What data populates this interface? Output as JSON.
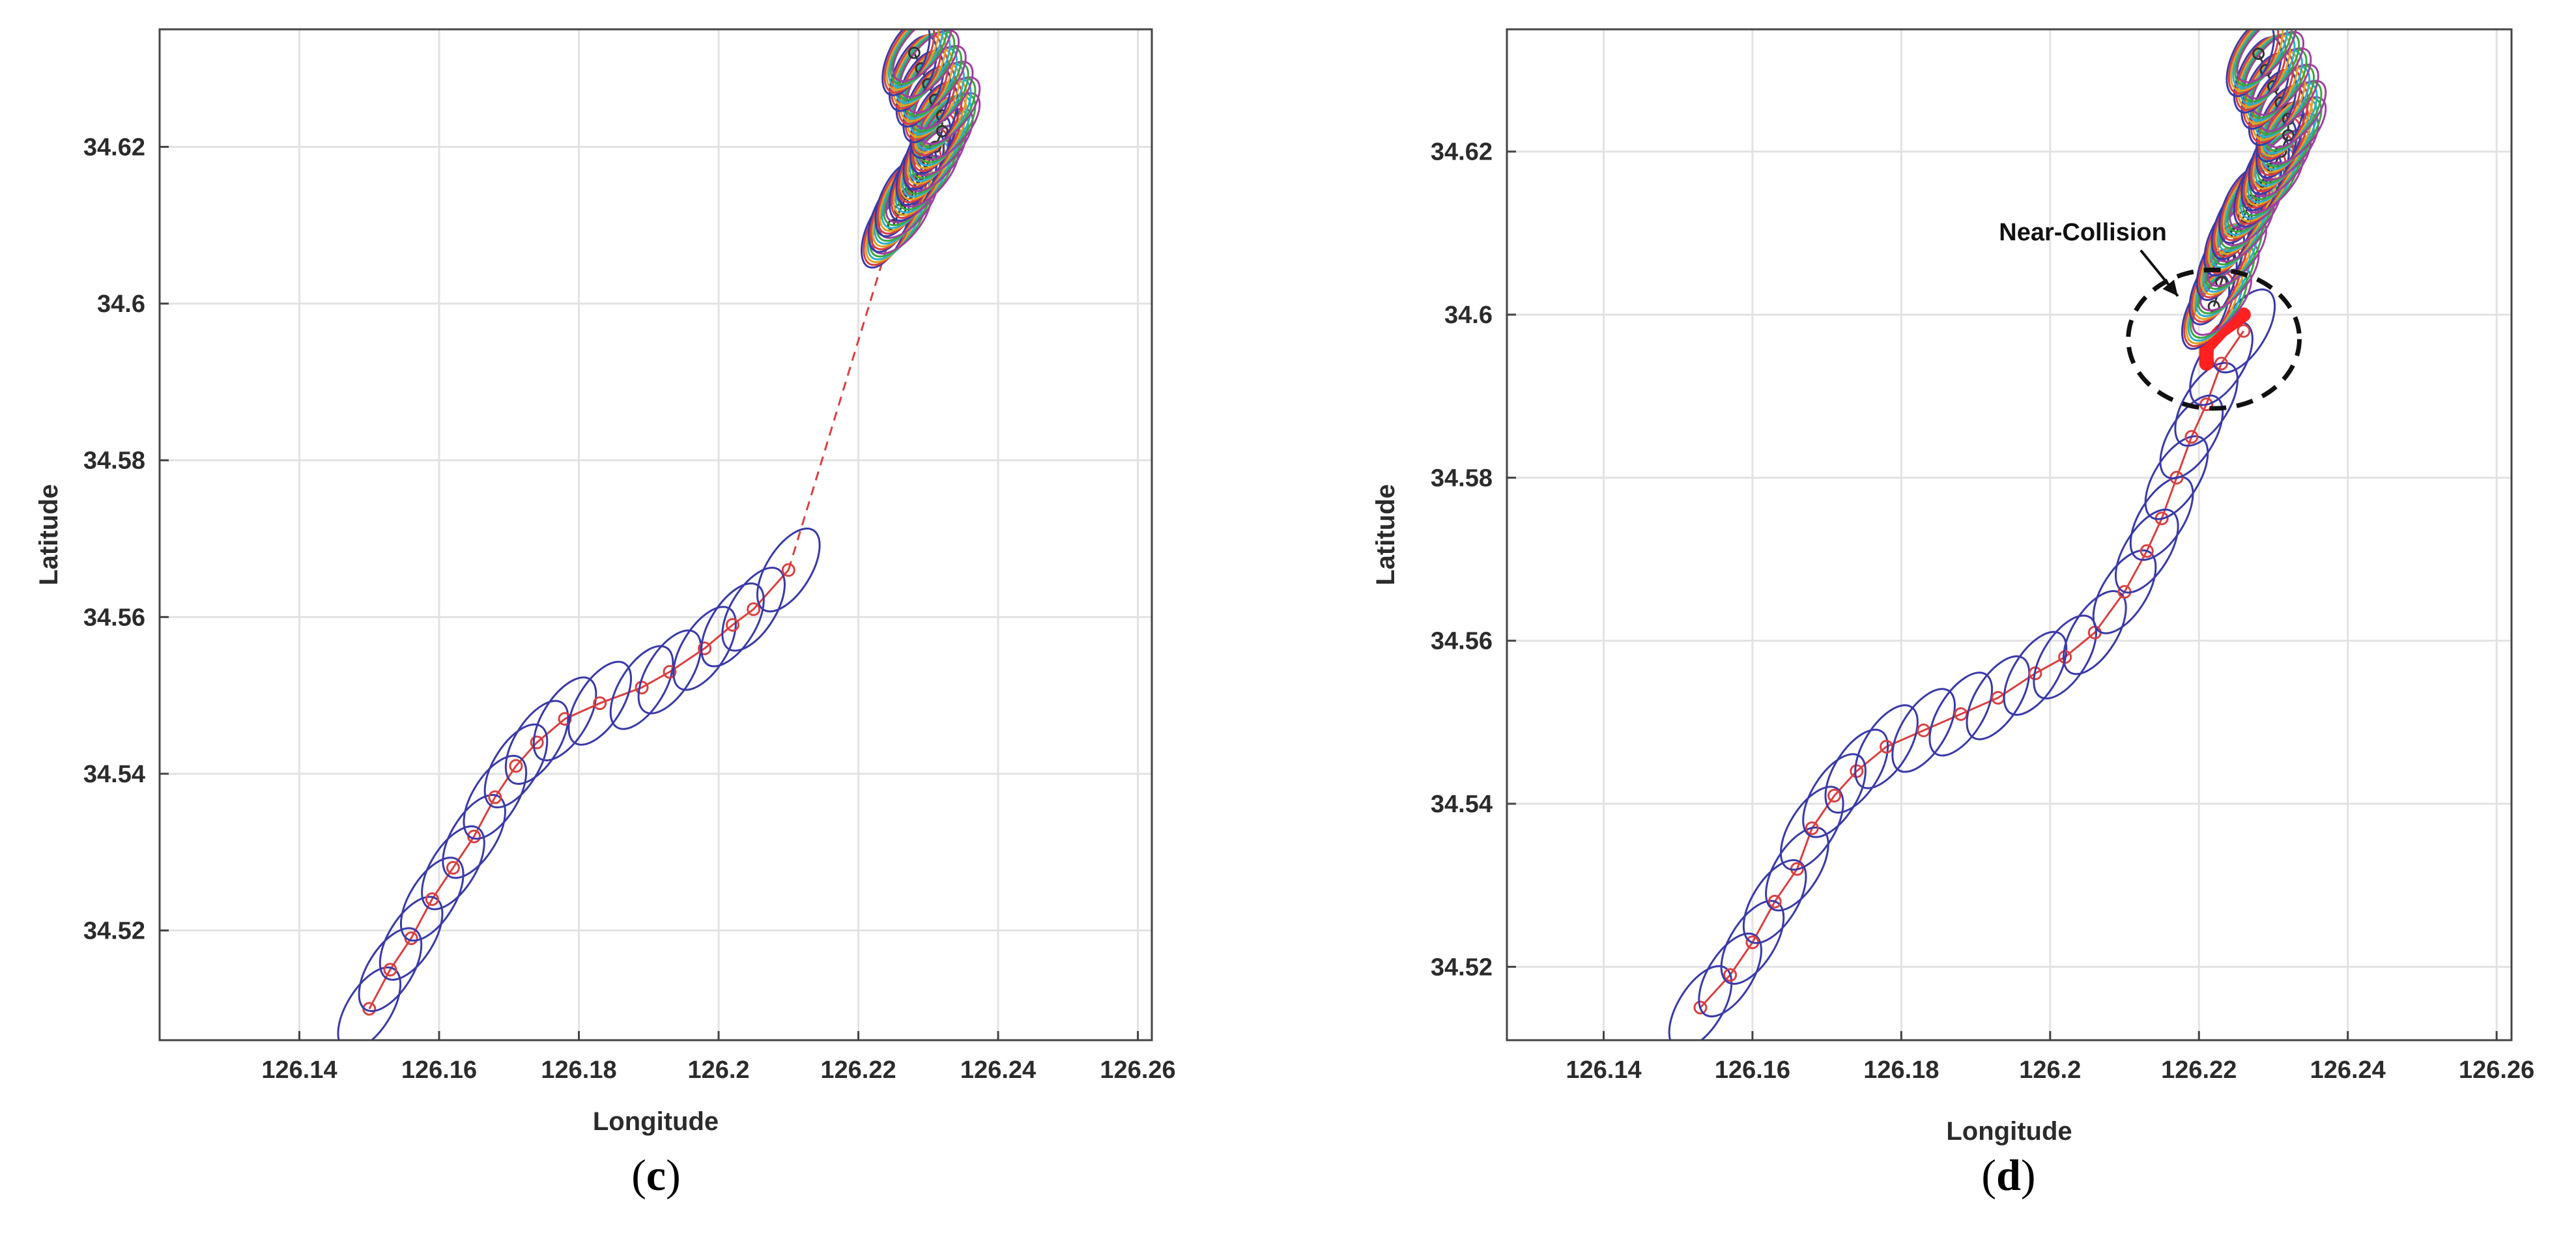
{
  "chart_data": [
    {
      "type": "scatter",
      "panel_label": "(c)",
      "panel_letter": "c",
      "xlabel": "Longitude",
      "ylabel": "Latitude",
      "xlim": [
        126.12,
        126.262
      ],
      "ylim": [
        34.506,
        34.635
      ],
      "xticks": [
        126.14,
        126.16,
        126.18,
        126.2,
        126.22,
        126.24,
        126.26
      ],
      "xtick_labels": [
        "126.14",
        "126.16",
        "126.18",
        "126.2",
        "126.22",
        "126.24",
        "126.26"
      ],
      "yticks": [
        34.52,
        34.54,
        34.56,
        34.58,
        34.6,
        34.62
      ],
      "ytick_labels": [
        "34.52",
        "34.54",
        "34.56",
        "34.58",
        "34.6",
        "34.62"
      ],
      "grid": true,
      "series": [
        {
          "role": "track",
          "color": "#3a3aa8",
          "points": [
            [
              126.15,
              34.51
            ],
            [
              126.153,
              34.515
            ],
            [
              126.156,
              34.519
            ],
            [
              126.159,
              34.524
            ],
            [
              126.162,
              34.528
            ],
            [
              126.165,
              34.532
            ],
            [
              126.168,
              34.537
            ],
            [
              126.171,
              34.541
            ],
            [
              126.174,
              34.544
            ],
            [
              126.178,
              34.547
            ],
            [
              126.183,
              34.549
            ],
            [
              126.189,
              34.551
            ],
            [
              126.193,
              34.553
            ],
            [
              126.198,
              34.556
            ],
            [
              126.202,
              34.559
            ],
            [
              126.205,
              34.561
            ],
            [
              126.21,
              34.566
            ]
          ]
        },
        {
          "role": "gap",
          "color": "#d94040",
          "dashed": true,
          "points": [
            [
              126.21,
              34.566
            ],
            [
              126.224,
              34.607
            ]
          ]
        },
        {
          "role": "ensemble",
          "colors": [
            "#3a3aa8",
            "#d94040",
            "#e0a020",
            "#2bb0c8",
            "#3aa840",
            "#a040a0"
          ],
          "points": [
            [
              126.225,
              34.61
            ],
            [
              126.226,
              34.612
            ],
            [
              126.227,
              34.614
            ],
            [
              126.229,
              34.616
            ],
            [
              126.23,
              34.618
            ],
            [
              126.231,
              34.62
            ],
            [
              126.232,
              34.622
            ],
            [
              126.232,
              34.624
            ],
            [
              126.231,
              34.626
            ],
            [
              126.23,
              34.628
            ],
            [
              126.229,
              34.63
            ],
            [
              126.228,
              34.632
            ]
          ]
        }
      ]
    },
    {
      "type": "scatter",
      "panel_label": "(d)",
      "panel_letter": "d",
      "xlabel": "Longitude",
      "ylabel": "Latitude",
      "xlim": [
        126.127,
        126.262
      ],
      "ylim": [
        34.511,
        34.635
      ],
      "xticks": [
        126.14,
        126.16,
        126.18,
        126.2,
        126.22,
        126.24,
        126.26
      ],
      "xtick_labels": [
        "126.14",
        "126.16",
        "126.18",
        "126.2",
        "126.22",
        "126.24",
        "126.26"
      ],
      "yticks": [
        34.52,
        34.54,
        34.56,
        34.58,
        34.6,
        34.62
      ],
      "ytick_labels": [
        "34.52",
        "34.54",
        "34.56",
        "34.58",
        "34.6",
        "34.62"
      ],
      "grid": true,
      "annotation": {
        "text": "Near-Collision",
        "center": [
          126.222,
          34.597
        ],
        "radius_x": 0.0115,
        "radius_y": 0.0085
      },
      "series": [
        {
          "role": "track",
          "color": "#3a3aa8",
          "points": [
            [
              126.153,
              34.515
            ],
            [
              126.157,
              34.519
            ],
            [
              126.16,
              34.523
            ],
            [
              126.163,
              34.528
            ],
            [
              126.166,
              34.532
            ],
            [
              126.168,
              34.537
            ],
            [
              126.171,
              34.541
            ],
            [
              126.174,
              34.544
            ],
            [
              126.178,
              34.547
            ],
            [
              126.183,
              34.549
            ],
            [
              126.188,
              34.551
            ],
            [
              126.193,
              34.553
            ],
            [
              126.198,
              34.556
            ],
            [
              126.202,
              34.558
            ],
            [
              126.206,
              34.561
            ],
            [
              126.21,
              34.566
            ],
            [
              126.213,
              34.571
            ],
            [
              126.215,
              34.575
            ],
            [
              126.217,
              34.58
            ],
            [
              126.219,
              34.585
            ],
            [
              126.221,
              34.589
            ],
            [
              126.223,
              34.594
            ],
            [
              126.226,
              34.598
            ]
          ]
        },
        {
          "role": "near-collision",
          "color": "#ff2020",
          "points": [
            [
              126.221,
              34.594
            ],
            [
              126.221,
              34.596
            ],
            [
              126.223,
              34.598
            ],
            [
              126.226,
              34.6
            ]
          ]
        },
        {
          "role": "ensemble",
          "colors": [
            "#3a3aa8",
            "#d94040",
            "#e0a020",
            "#2bb0c8",
            "#3aa840",
            "#a040a0"
          ],
          "points": [
            [
              126.222,
              34.601
            ],
            [
              126.223,
              34.604
            ],
            [
              126.224,
              34.607
            ],
            [
              126.225,
              34.61
            ],
            [
              126.226,
              34.612
            ],
            [
              126.227,
              34.614
            ],
            [
              126.229,
              34.616
            ],
            [
              126.23,
              34.618
            ],
            [
              126.231,
              34.62
            ],
            [
              126.232,
              34.622
            ],
            [
              126.232,
              34.624
            ],
            [
              126.231,
              34.626
            ],
            [
              126.23,
              34.628
            ],
            [
              126.229,
              34.63
            ],
            [
              126.228,
              34.632
            ]
          ]
        }
      ]
    }
  ]
}
